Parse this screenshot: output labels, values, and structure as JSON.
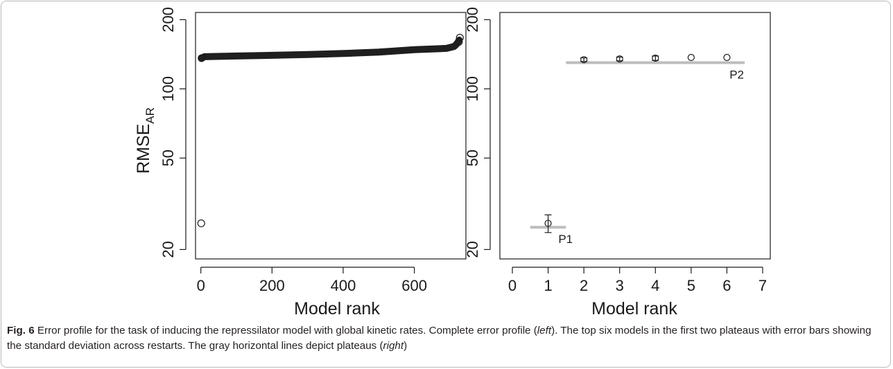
{
  "figure": {
    "label": "Fig. 6",
    "caption_a": "Error profile for the task of inducing the repressilator model with global kinetic rates. Complete error profile (",
    "caption_left": "left",
    "caption_b": "). The top six models in the first two plateaus with error bars showing the standard deviation across restarts. The gray horizontal lines depict plateaus (",
    "caption_right": "right",
    "caption_c": ")"
  },
  "chart_data": [
    {
      "type": "scatter",
      "panel": "left",
      "ylabel_main": "RMSE",
      "ylabel_sub": "AR",
      "xlabel": "Model rank",
      "x_ticks": [
        0,
        200,
        400,
        600
      ],
      "y_ticks": [
        20,
        50,
        100,
        200
      ],
      "y_scale": "log",
      "xlim": [
        -15,
        745
      ],
      "ylim": [
        18.2,
        215
      ],
      "grid": false,
      "outlier": {
        "x": 1,
        "y": 26
      },
      "curve": [
        [
          2,
          136
        ],
        [
          10,
          138
        ],
        [
          100,
          139
        ],
        [
          200,
          140
        ],
        [
          300,
          141
        ],
        [
          400,
          142.5
        ],
        [
          500,
          144.5
        ],
        [
          600,
          148
        ],
        [
          690,
          150
        ],
        [
          705,
          152
        ],
        [
          712,
          153
        ],
        [
          718,
          156
        ],
        [
          722,
          159
        ],
        [
          726,
          163
        ]
      ],
      "top_points": [
        {
          "x": 728,
          "y": 167
        },
        {
          "x": 725,
          "y": 160
        }
      ]
    },
    {
      "type": "scatter",
      "panel": "right",
      "xlabel": "Model rank",
      "x_ticks": [
        0,
        1,
        2,
        3,
        4,
        5,
        6,
        7
      ],
      "y_ticks": [
        20,
        50,
        100,
        200
      ],
      "y_scale": "log",
      "xlim": [
        0,
        7
      ],
      "ylim": [
        18.2,
        215
      ],
      "grid": false,
      "points": [
        {
          "x": 1,
          "y": 26,
          "err": 2.3
        },
        {
          "x": 2,
          "y": 134,
          "err": 2.5
        },
        {
          "x": 3,
          "y": 135,
          "err": 2.5
        },
        {
          "x": 4,
          "y": 136,
          "err": 3
        },
        {
          "x": 5,
          "y": 137,
          "err": 0
        },
        {
          "x": 6,
          "y": 137,
          "err": 0
        }
      ],
      "plateaus": [
        {
          "label": "P1",
          "x_start": 0.5,
          "x_end": 1.5,
          "y": 25
        },
        {
          "label": "P2",
          "x_start": 1.5,
          "x_end": 6.5,
          "y": 130
        }
      ],
      "plateau_color": "#bdbdbd"
    }
  ]
}
